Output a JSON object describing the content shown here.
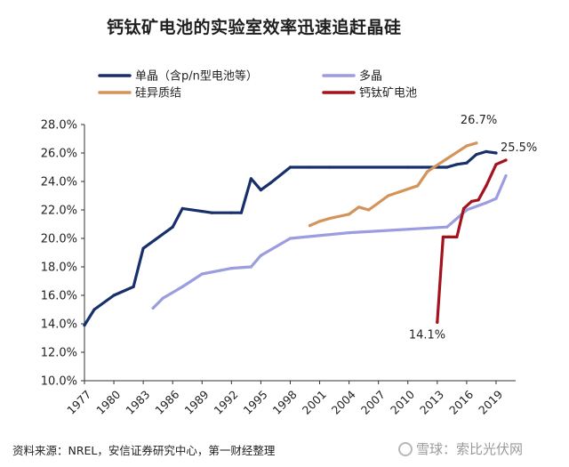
{
  "title": "钙钛矿电池的实验室效率迅速追赶晶硅",
  "source": "资料来源：NREL，安信证券研究中心，第一财经整理",
  "watermark": "雪球：索比光伏网",
  "chart_data": {
    "type": "line",
    "title": "钙钛矿电池的实验室效率迅速追赶晶硅",
    "xlabel": "",
    "ylabel": "",
    "xlim": [
      1977,
      2021
    ],
    "ylim": [
      10.0,
      28.0
    ],
    "y_ticks": [
      10.0,
      12.0,
      14.0,
      16.0,
      18.0,
      20.0,
      22.0,
      24.0,
      26.0,
      28.0
    ],
    "y_tick_labels": [
      "10.0%",
      "12.0%",
      "14.0%",
      "16.0%",
      "18.0%",
      "20.0%",
      "22.0%",
      "24.0%",
      "26.0%",
      "28.0%"
    ],
    "x_ticks": [
      1977,
      1980,
      1983,
      1986,
      1989,
      1992,
      1995,
      1998,
      2001,
      2004,
      2007,
      2010,
      2013,
      2016,
      2019
    ],
    "legend_position": "top",
    "grid": false,
    "series": [
      {
        "name": "单晶（含p/n型电池等）",
        "color": "#17306b",
        "x": [
          1977,
          1978,
          1980,
          1982,
          1983,
          1986,
          1987,
          1989,
          1990,
          1992,
          1993,
          1994,
          1995,
          1996,
          1998,
          2000,
          2002,
          2010,
          2014,
          2015,
          2016,
          2017,
          2018,
          2019
        ],
        "y": [
          13.9,
          15.0,
          16.0,
          16.6,
          19.3,
          20.8,
          22.1,
          21.9,
          21.8,
          21.8,
          21.8,
          24.2,
          23.4,
          23.9,
          25.0,
          25.0,
          25.0,
          25.0,
          25.0,
          25.2,
          25.3,
          25.9,
          26.1,
          26.0
        ]
      },
      {
        "name": "多晶",
        "color": "#9c9ce0",
        "x": [
          1984,
          1985,
          1987,
          1989,
          1992,
          1994,
          1995,
          1998,
          2004,
          2014,
          2016,
          2018,
          2019,
          2020
        ],
        "y": [
          15.1,
          15.8,
          16.6,
          17.5,
          17.9,
          18.0,
          18.8,
          20.0,
          20.4,
          20.8,
          22.0,
          22.5,
          22.8,
          24.4
        ]
      },
      {
        "name": "硅异质结",
        "color": "#d4935a",
        "x": [
          2000,
          2001,
          2002,
          2004,
          2005,
          2006,
          2008,
          2011,
          2012,
          2014,
          2016,
          2017
        ],
        "y": [
          20.9,
          21.2,
          21.4,
          21.7,
          22.2,
          22.0,
          23.0,
          23.7,
          24.7,
          25.6,
          26.5,
          26.7
        ]
      },
      {
        "name": "钙钛矿电池",
        "color": "#a3121d",
        "x": [
          2013,
          2013.6,
          2014.2,
          2015,
          2015.7,
          2016.5,
          2017.2,
          2018,
          2019,
          2020
        ],
        "y": [
          14.1,
          20.1,
          20.1,
          20.1,
          22.1,
          22.6,
          22.7,
          23.7,
          25.2,
          25.5
        ]
      }
    ],
    "annotations": [
      {
        "text": "26.7%",
        "x": 2017,
        "y": 26.7
      },
      {
        "text": "25.5%",
        "x": 2020,
        "y": 25.5
      },
      {
        "text": "14.1%",
        "x": 2013,
        "y": 14.1
      }
    ]
  }
}
